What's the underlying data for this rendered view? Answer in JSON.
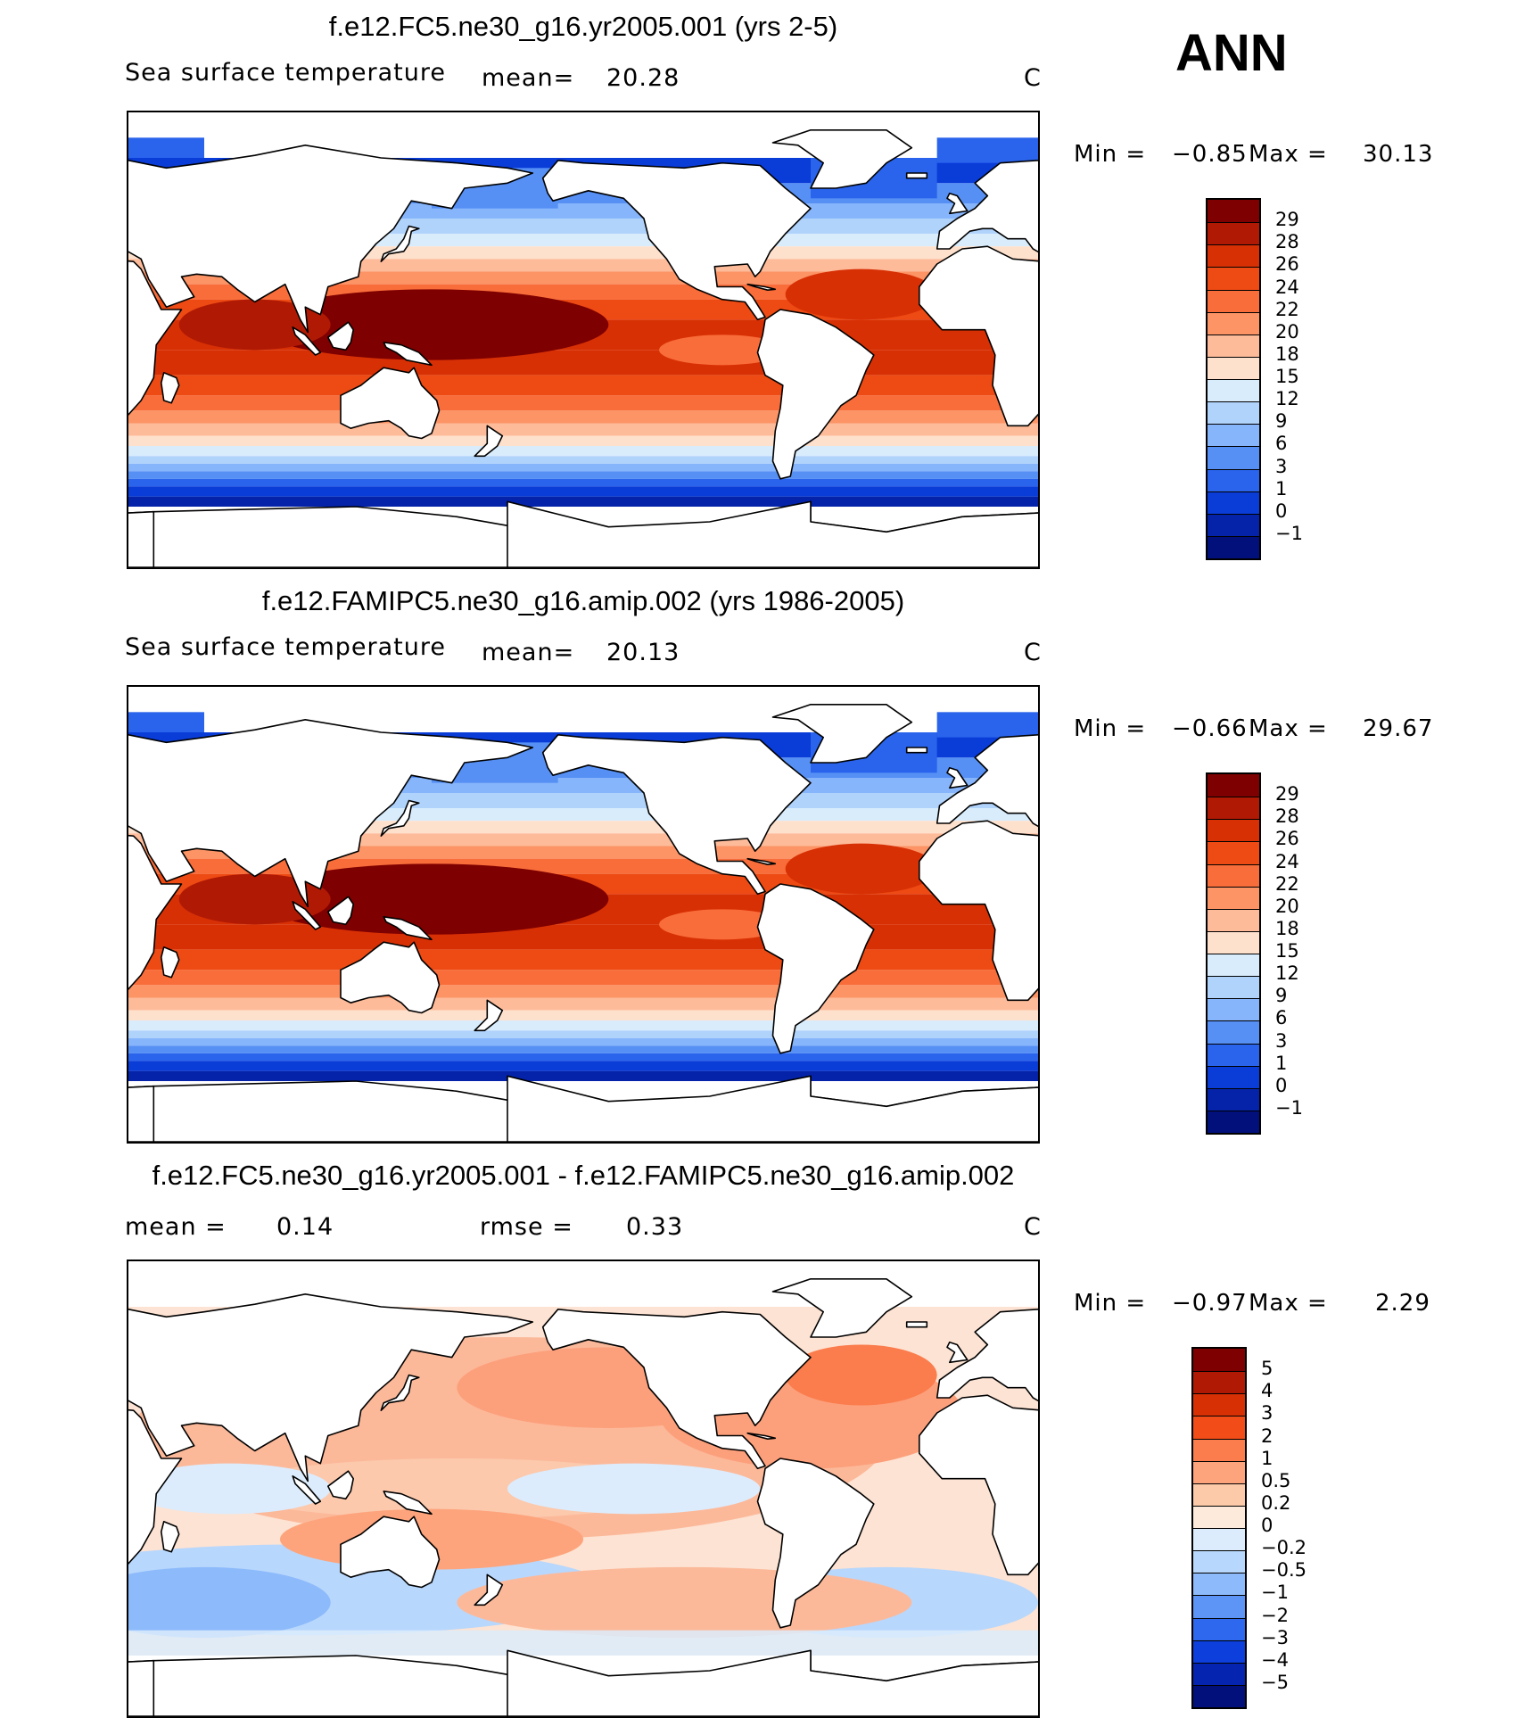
{
  "season": "ANN",
  "panels": [
    {
      "title": "f.e12.FC5.ne30_g16.yr2005.001 (yrs 2-5)",
      "left_label": "Sea surface temperature",
      "mean_label": "mean=",
      "mean_value": "20.28",
      "mid_label": "",
      "mid_value": "",
      "units": "C",
      "min_label": "Min =",
      "min_value": "−0.85",
      "max_label": "Max =",
      "max_value": "30.13",
      "colorbar": {
        "levels": [
          "29",
          "28",
          "26",
          "24",
          "22",
          "20",
          "18",
          "15",
          "12",
          "9",
          "6",
          "3",
          "1",
          "0",
          "−1"
        ],
        "colors": [
          "#7f0000",
          "#b01a04",
          "#d83005",
          "#ee4a13",
          "#f96d3a",
          "#fc9466",
          "#fdbb9a",
          "#fee1cd",
          "#d8ecfc",
          "#b0d3fc",
          "#86b5fb",
          "#5690f5",
          "#2a64ec",
          "#0a3cd8",
          "#0423a8",
          "#01107a"
        ]
      }
    },
    {
      "title": "f.e12.FAMIPC5.ne30_g16.amip.002 (yrs 1986-2005)",
      "left_label": "Sea surface temperature",
      "mean_label": "mean=",
      "mean_value": "20.13",
      "mid_label": "",
      "mid_value": "",
      "units": "C",
      "min_label": "Min =",
      "min_value": "−0.66",
      "max_label": "Max =",
      "max_value": "29.67",
      "colorbar": {
        "levels": [
          "29",
          "28",
          "26",
          "24",
          "22",
          "20",
          "18",
          "15",
          "12",
          "9",
          "6",
          "3",
          "1",
          "0",
          "−1"
        ],
        "colors": [
          "#7f0000",
          "#b01a04",
          "#d83005",
          "#ee4a13",
          "#f96d3a",
          "#fc9466",
          "#fdbb9a",
          "#fee1cd",
          "#d8ecfc",
          "#b0d3fc",
          "#86b5fb",
          "#5690f5",
          "#2a64ec",
          "#0a3cd8",
          "#0423a8",
          "#01107a"
        ]
      }
    },
    {
      "title": "f.e12.FC5.ne30_g16.yr2005.001 - f.e12.FAMIPC5.ne30_g16.amip.002",
      "left_label": "",
      "mean_label": "mean =",
      "mean_value": "0.14",
      "mid_label": "rmse =",
      "mid_value": "0.33",
      "units": "C",
      "min_label": "Min =",
      "min_value": "−0.97",
      "max_label": "Max =",
      "max_value": "2.29",
      "colorbar": {
        "levels": [
          "5",
          "4",
          "3",
          "2",
          "1",
          "0.5",
          "0.2",
          "0",
          "−0.2",
          "−0.5",
          "−1",
          "−2",
          "−3",
          "−4",
          "−5"
        ],
        "colors": [
          "#7f0000",
          "#b01a04",
          "#d83005",
          "#f24d18",
          "#fb7c4c",
          "#fda47c",
          "#fdcaa9",
          "#feeadb",
          "#dcecfc",
          "#b8d7fc",
          "#8cbafb",
          "#5c95f6",
          "#2d68ee",
          "#0c3fdc",
          "#0525b0",
          "#01107a"
        ]
      }
    }
  ]
}
